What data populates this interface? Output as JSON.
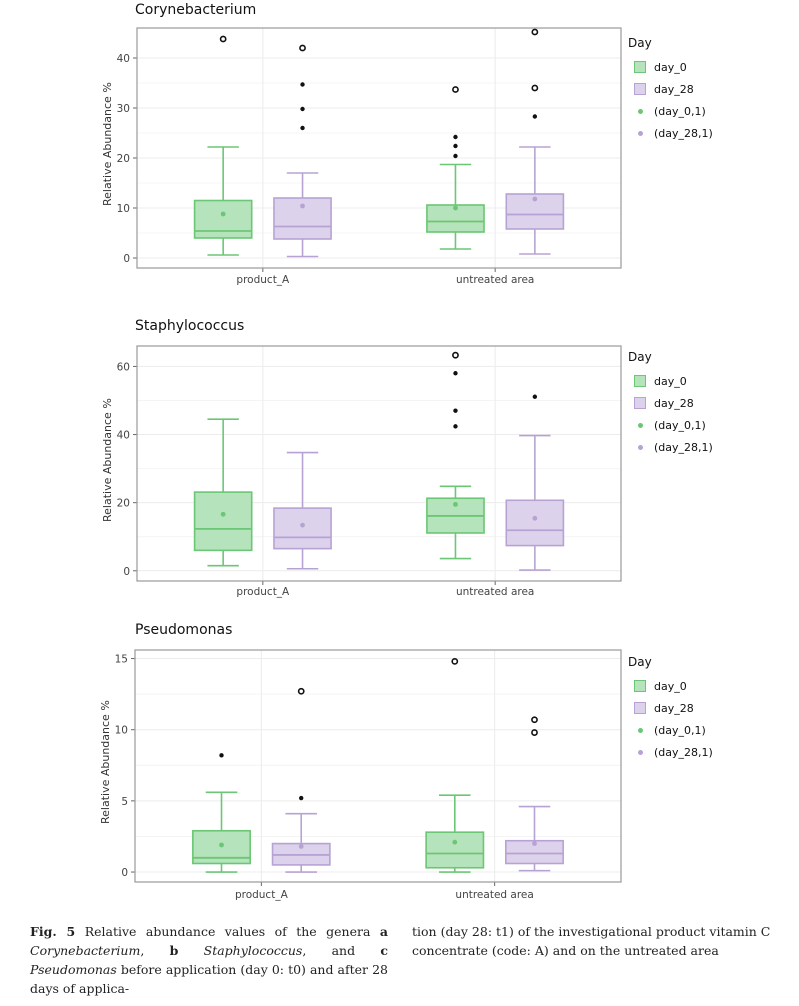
{
  "colors": {
    "day_0_fill": "#b5e3bb",
    "day_0_stroke": "#6cc675",
    "day_28_fill": "#ddd2ec",
    "day_28_stroke": "#b7a3d3",
    "panel_border": "#999999",
    "grid": "#ececec"
  },
  "legend": {
    "title": "Day",
    "entries": [
      "day_0",
      "day_28",
      "(day_0,1)",
      "(day_28,1)"
    ]
  },
  "chart_data": [
    {
      "type": "boxplot",
      "title": "Corynebacterium",
      "ylabel": "Relative Abundance %",
      "xlabel": "",
      "categories": [
        "product_A",
        "untreated area"
      ],
      "ylim": [
        -2,
        46
      ],
      "yticks": [
        0,
        10,
        20,
        30,
        40
      ],
      "grid": true,
      "legend_position": "right",
      "series": [
        {
          "name": "day_0",
          "boxes": [
            {
              "min": 0.6,
              "q1": 4.0,
              "median": 5.4,
              "q3": 11.5,
              "max": 22.2,
              "mean": 8.8,
              "outliers": [
                43.8
              ],
              "open_outliers": [
                43.8
              ]
            },
            {
              "min": 1.8,
              "q1": 5.2,
              "median": 7.3,
              "q3": 10.6,
              "max": 18.7,
              "mean": 10.0,
              "outliers": [
                20.4,
                22.4,
                24.2,
                33.7
              ],
              "open_outliers": [
                33.7
              ]
            }
          ]
        },
        {
          "name": "day_28",
          "boxes": [
            {
              "min": 0.3,
              "q1": 3.8,
              "median": 6.3,
              "q3": 12.0,
              "max": 17.0,
              "mean": 10.4,
              "outliers": [
                26.0,
                29.8,
                34.7,
                42.0
              ],
              "open_outliers": [
                42.0
              ]
            },
            {
              "min": 0.8,
              "q1": 5.8,
              "median": 8.7,
              "q3": 12.8,
              "max": 22.2,
              "mean": 11.8,
              "outliers": [
                28.3,
                34.0,
                45.2
              ],
              "open_outliers": [
                34.0,
                45.2
              ]
            }
          ]
        }
      ]
    },
    {
      "type": "boxplot",
      "title": "Staphylococcus",
      "ylabel": "Relative Abundance %",
      "xlabel": "",
      "categories": [
        "product_A",
        "untreated area"
      ],
      "ylim": [
        -3,
        66
      ],
      "yticks": [
        0,
        20,
        40,
        60
      ],
      "grid": true,
      "legend_position": "right",
      "series": [
        {
          "name": "day_0",
          "boxes": [
            {
              "min": 1.5,
              "q1": 6.0,
              "median": 12.3,
              "q3": 23.1,
              "max": 44.5,
              "mean": 16.6,
              "outliers": [],
              "open_outliers": []
            },
            {
              "min": 3.6,
              "q1": 11.1,
              "median": 16.1,
              "q3": 21.3,
              "max": 24.8,
              "mean": 19.5,
              "outliers": [
                42.4,
                47.0,
                58.0,
                63.3
              ],
              "open_outliers": [
                63.3
              ]
            }
          ]
        },
        {
          "name": "day_28",
          "boxes": [
            {
              "min": 0.6,
              "q1": 6.5,
              "median": 9.8,
              "q3": 18.4,
              "max": 34.7,
              "mean": 13.4,
              "outliers": [],
              "open_outliers": []
            },
            {
              "min": 0.2,
              "q1": 7.4,
              "median": 11.9,
              "q3": 20.7,
              "max": 39.7,
              "mean": 15.4,
              "outliers": [
                51.1
              ],
              "open_outliers": []
            }
          ]
        }
      ]
    },
    {
      "type": "boxplot",
      "title": "Pseudomonas",
      "ylabel": "Relative Abundance %",
      "xlabel": "",
      "categories": [
        "product_A",
        "untreated area"
      ],
      "ylim": [
        -0.7,
        15.6
      ],
      "yticks": [
        0,
        5,
        10,
        15
      ],
      "grid": true,
      "legend_position": "right",
      "series": [
        {
          "name": "day_0",
          "boxes": [
            {
              "min": 0.0,
              "q1": 0.6,
              "median": 1.0,
              "q3": 2.9,
              "max": 5.6,
              "mean": 1.9,
              "outliers": [
                8.2
              ],
              "open_outliers": []
            },
            {
              "min": 0.0,
              "q1": 0.3,
              "median": 1.3,
              "q3": 2.8,
              "max": 5.4,
              "mean": 2.1,
              "outliers": [
                14.8
              ],
              "open_outliers": [
                14.8
              ]
            }
          ]
        },
        {
          "name": "day_28",
          "boxes": [
            {
              "min": 0.0,
              "q1": 0.5,
              "median": 1.2,
              "q3": 2.0,
              "max": 4.1,
              "mean": 1.8,
              "outliers": [
                5.2,
                12.7
              ],
              "open_outliers": [
                12.7
              ]
            },
            {
              "min": 0.1,
              "q1": 0.6,
              "median": 1.3,
              "q3": 2.2,
              "max": 4.6,
              "mean": 2.0,
              "outliers": [
                9.8,
                10.7
              ],
              "open_outliers": [
                9.8,
                10.7
              ]
            }
          ]
        }
      ]
    }
  ],
  "caption": {
    "fig_label": "Fig. 5",
    "text_1": " Relative abundance values of the genera ",
    "a": "a",
    "genus_a": "Corynebacterium",
    "comma_1": ", ",
    "b": "b",
    "genus_b": "Staphylococcus",
    "and": ", and ",
    "c": "c",
    "genus_c": "Pseudomonas",
    "text_2": " before application (day 0: t0) and after 28 days of applica-",
    "right": "tion (day 28: t1) of the investigational product vitamin C concentrate (code: A) and on the untreated area"
  }
}
